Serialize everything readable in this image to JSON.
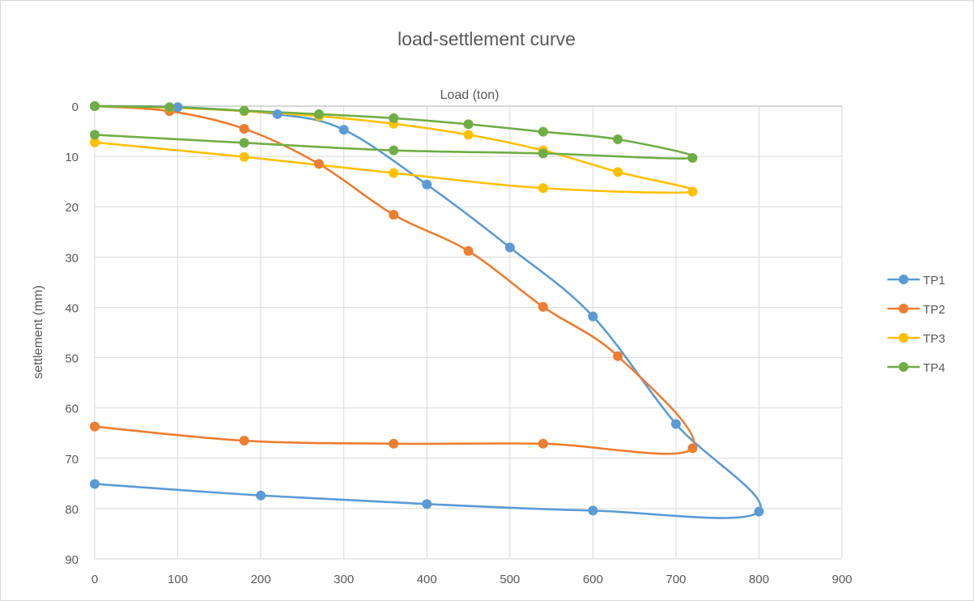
{
  "chart_data": {
    "type": "scatter",
    "title": "load-settlement curve",
    "xlabel": "Load (ton)",
    "ylabel": "settlement (mm)",
    "xlim": [
      0,
      900
    ],
    "ylim": [
      0,
      90
    ],
    "y_inverted": true,
    "x_axis_position": "top",
    "x_ticks": [
      0,
      100,
      200,
      300,
      400,
      500,
      600,
      700,
      800,
      900
    ],
    "y_ticks": [
      0,
      10,
      20,
      30,
      40,
      50,
      60,
      70,
      80,
      90
    ],
    "grid": true,
    "legend_position": "right",
    "series": [
      {
        "name": "TP1",
        "color": "#5b9bd5",
        "x": [
          0,
          100,
          220,
          300,
          400,
          500,
          600,
          700,
          800,
          600,
          400,
          200,
          0
        ],
        "y": [
          0,
          0.2,
          1.6,
          4.7,
          15.6,
          28.1,
          41.8,
          63.2,
          80.6,
          80.4,
          79.1,
          77.4,
          75.1
        ]
      },
      {
        "name": "TP2",
        "color": "#ed7d31",
        "x": [
          0,
          90,
          180,
          270,
          360,
          450,
          540,
          630,
          720,
          540,
          360,
          180,
          0
        ],
        "y": [
          0,
          1.0,
          4.5,
          11.5,
          21.6,
          28.8,
          39.9,
          49.7,
          68.0,
          67.1,
          67.1,
          66.5,
          63.7
        ]
      },
      {
        "name": "TP3",
        "color": "#ffc000",
        "x": [
          0,
          90,
          180,
          270,
          360,
          450,
          540,
          630,
          720,
          540,
          360,
          180,
          0
        ],
        "y": [
          0,
          0.3,
          1.0,
          2.0,
          3.5,
          5.7,
          8.8,
          13.1,
          17.0,
          16.3,
          13.3,
          10.1,
          7.2
        ]
      },
      {
        "name": "TP4",
        "color": "#70ad47",
        "x": [
          0,
          90,
          180,
          270,
          360,
          450,
          540,
          630,
          720,
          540,
          360,
          180,
          0
        ],
        "y": [
          0,
          0.2,
          0.9,
          1.6,
          2.4,
          3.6,
          5.1,
          6.6,
          10.3,
          9.4,
          8.8,
          7.3,
          5.7
        ]
      }
    ]
  }
}
